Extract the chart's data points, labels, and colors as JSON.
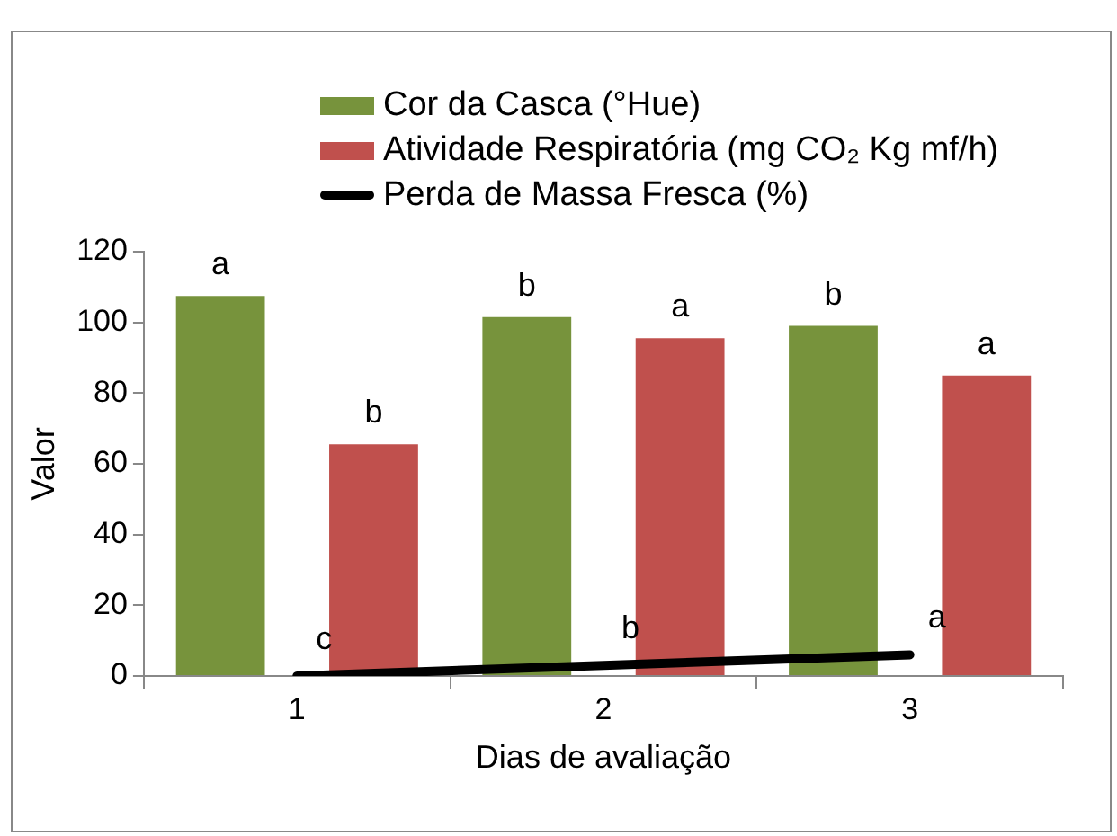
{
  "chart_data": {
    "type": "bar",
    "xlabel": "Dias de avaliação",
    "ylabel": "Valor",
    "categories": [
      "1",
      "2",
      "3"
    ],
    "series": [
      {
        "name": "Cor da Casca (°Hue)",
        "color": "#77933c",
        "values": [
          107.5,
          101.5,
          99
        ],
        "value_labels": [
          "a",
          "b",
          "b"
        ]
      },
      {
        "name": "Atividade Respiratória (mg CO₂ Kg mf/h)",
        "color": "#c0504d",
        "values": [
          65.5,
          95.5,
          85
        ],
        "value_labels": [
          "b",
          "a",
          "a"
        ]
      },
      {
        "name": "Perda de Massa Fresca (%)",
        "type": "line",
        "color": "#000000",
        "values": [
          0,
          3,
          6
        ],
        "value_labels": [
          "c",
          "b",
          "a"
        ]
      }
    ],
    "ylim": [
      0,
      120
    ],
    "yticks": [
      0,
      20,
      40,
      60,
      80,
      100,
      120
    ],
    "grid": false,
    "legend": "top",
    "marker": "none"
  }
}
